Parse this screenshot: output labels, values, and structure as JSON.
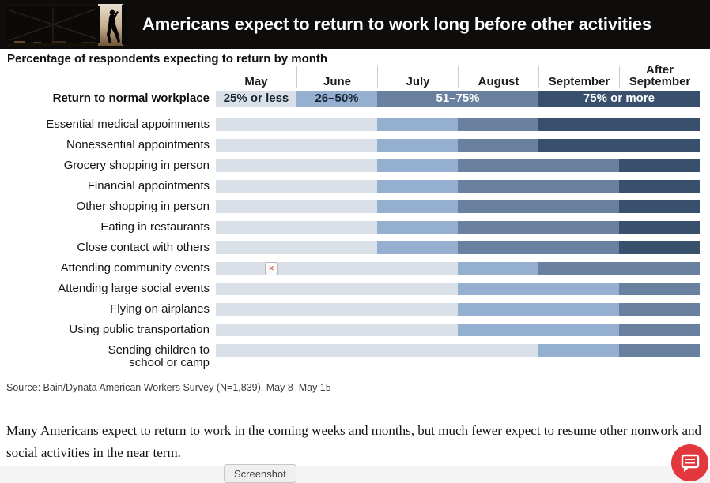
{
  "header": {
    "title": "Americans expect to return to work long before other activities"
  },
  "subtitle": "Percentage of respondents expecting to return by month",
  "chart_data": {
    "type": "heatmap",
    "title": "Americans expect to return to work long before other activities",
    "subtitle": "Percentage of respondents expecting to return by month",
    "columns": [
      "May",
      "June",
      "July",
      "August",
      "September",
      "After\nSeptember"
    ],
    "legend_position": "top",
    "buckets": [
      {
        "label": "25% or less",
        "color": "#d9e0e8",
        "text_color": "#16212e"
      },
      {
        "label": "26–50%",
        "color": "#94afd0",
        "text_color": "#16212e"
      },
      {
        "label": "51–75%",
        "color": "#69819f",
        "text_color": "#ffffff"
      },
      {
        "label": "75% or more",
        "color": "#38506c",
        "text_color": "#ffffff"
      }
    ],
    "legend": {
      "row_label": "Return to normal workplace",
      "spans": [
        {
          "bucket": 0,
          "columns": 1
        },
        {
          "bucket": 1,
          "columns": 1
        },
        {
          "bucket": 2,
          "columns": 2
        },
        {
          "bucket": 3,
          "columns": 2
        }
      ]
    },
    "rows": [
      {
        "label": "Essential medical appoinments",
        "values": [
          0,
          0,
          1,
          2,
          3,
          3
        ]
      },
      {
        "label": "Nonessential appointments",
        "values": [
          0,
          0,
          1,
          2,
          3,
          3
        ]
      },
      {
        "label": "Grocery shopping in person",
        "values": [
          0,
          0,
          1,
          2,
          2,
          3
        ]
      },
      {
        "label": "Financial appointments",
        "values": [
          0,
          0,
          1,
          2,
          2,
          3
        ]
      },
      {
        "label": "Other shopping in person",
        "values": [
          0,
          0,
          1,
          2,
          2,
          3
        ]
      },
      {
        "label": "Eating in restaurants",
        "values": [
          0,
          0,
          1,
          2,
          2,
          3
        ]
      },
      {
        "label": "Close contact with others",
        "values": [
          0,
          0,
          1,
          2,
          2,
          3
        ]
      },
      {
        "label": "Attending community events",
        "values": [
          0,
          0,
          0,
          1,
          2,
          2
        ],
        "broken_image": true
      },
      {
        "label": "Attending large social events",
        "values": [
          0,
          0,
          0,
          1,
          1,
          2
        ]
      },
      {
        "label": "Flying on airplanes",
        "values": [
          0,
          0,
          0,
          1,
          1,
          2
        ]
      },
      {
        "label": "Using public transportation",
        "values": [
          0,
          0,
          0,
          1,
          1,
          2
        ]
      },
      {
        "label": "Sending children to\nschool or camp",
        "values": [
          0,
          0,
          0,
          0,
          1,
          2
        ]
      }
    ]
  },
  "source": "Source: Bain/Dynata American Workers Survey (N=1,839), May 8–May 15",
  "commentary": "Many Americans expect to return to work in the coming weeks and months, but much fewer expect to resume other nonwork and social activities in the near term.",
  "footer": {
    "screenshot_label": "Screenshot"
  },
  "icons": {
    "broken_image_glyph": "✕",
    "feedback_icon": "chat-bubble-icon"
  },
  "colors": {
    "header_bg": "#0e0d0c",
    "feedback_red": "#e2383d",
    "month_divider": "#c7ccd2"
  }
}
